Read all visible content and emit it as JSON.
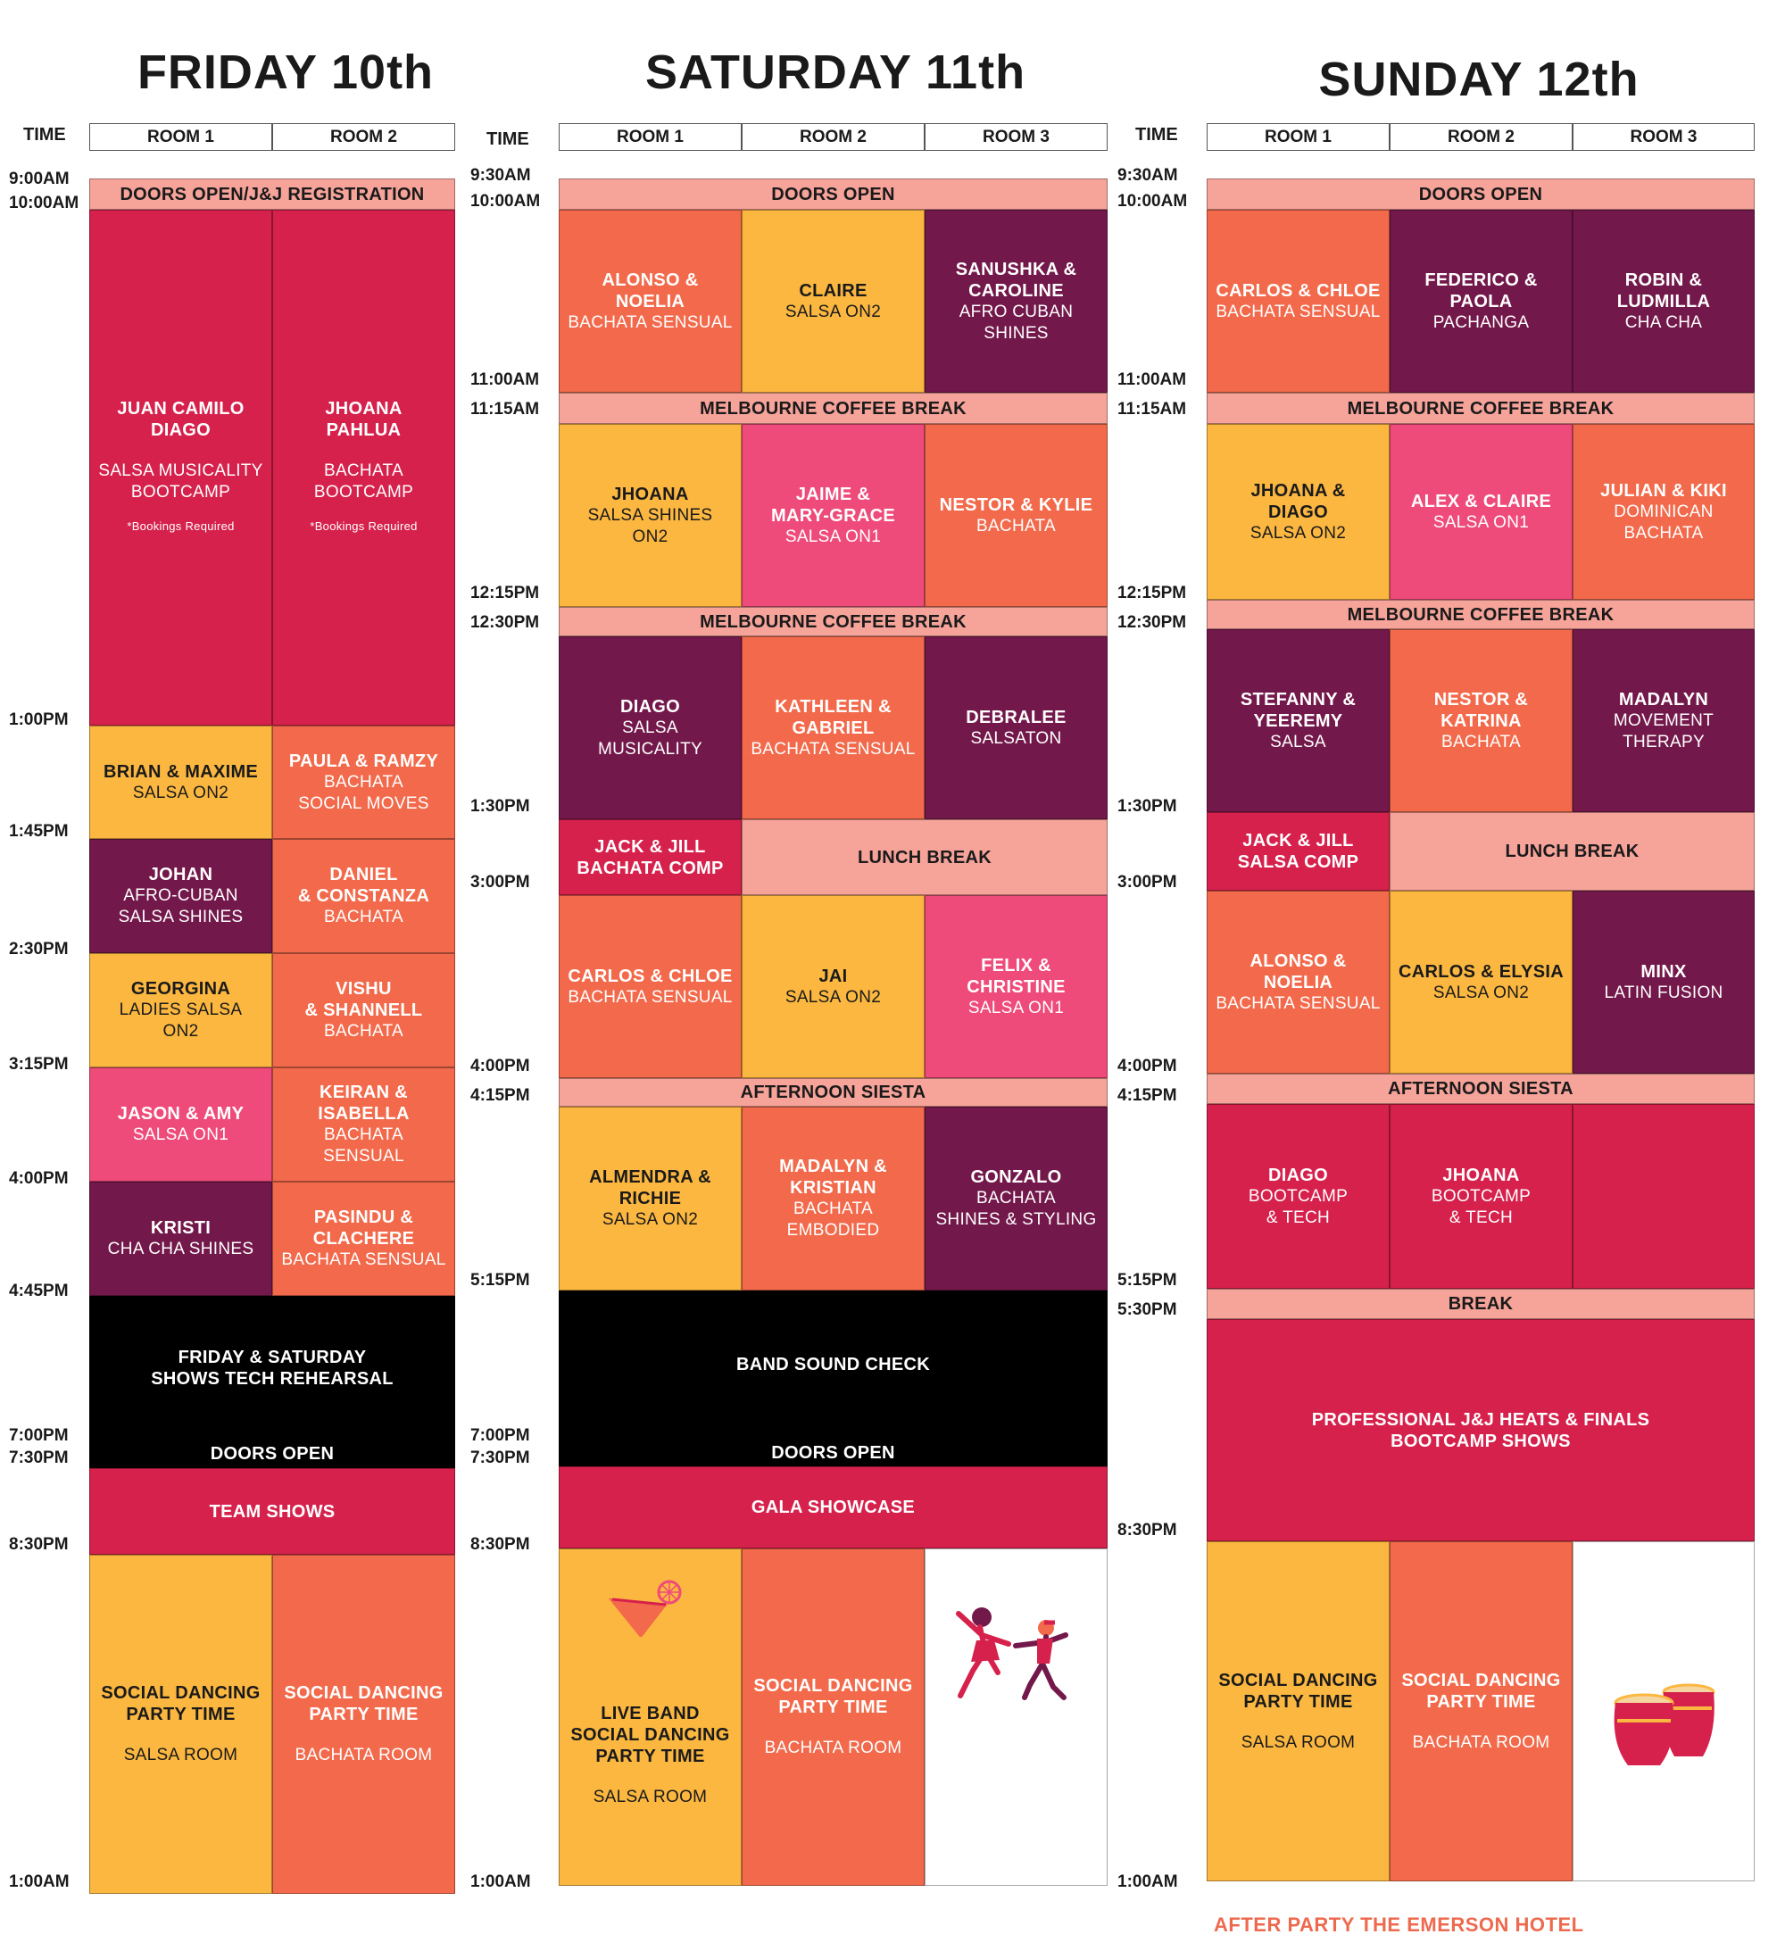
{
  "colors": {
    "crimson": "#d6214c",
    "orange": "#f26a4b",
    "yellow": "#fbb740",
    "pink": "#ef4b7a",
    "plum": "#73184a",
    "salmon": "#f6a39a",
    "black": "#000000"
  },
  "days": [
    {
      "title": "FRIDAY 10th",
      "time_label": "TIME",
      "rooms": [
        "ROOM 1",
        "ROOM 2"
      ],
      "times": [
        "9:00AM",
        "10:00AM",
        "1:00PM",
        "1:45PM",
        "2:30PM",
        "3:15PM",
        "4:00PM",
        "4:45PM",
        "7:00PM",
        "7:30PM",
        "8:30PM",
        "1:00AM"
      ],
      "blocks": [
        {
          "name": "DOORS OPEN/J&J REGISTRATION"
        },
        {
          "name": "JUAN CAMILO\nDIAGO",
          "sub": "SALSA MUSICALITY\nBOOTCAMP",
          "note": "*Bookings Required"
        },
        {
          "name": "JHOANA\nPAHLUA",
          "sub": "BACHATA\nBOOTCAMP",
          "note": "*Bookings Required"
        },
        {
          "name": "BRIAN & MAXIME",
          "sub": "SALSA ON2"
        },
        {
          "name": "PAULA & RAMZY",
          "sub": "BACHATA\nSOCIAL MOVES"
        },
        {
          "name": "JOHAN",
          "sub": "AFRO-CUBAN\nSALSA SHINES"
        },
        {
          "name": "DANIEL\n& CONSTANZA",
          "sub": "BACHATA"
        },
        {
          "name": "GEORGINA",
          "sub": "LADIES SALSA\nON2"
        },
        {
          "name": "VISHU\n& SHANNELL",
          "sub": "BACHATA"
        },
        {
          "name": "JASON & AMY",
          "sub": "SALSA ON1"
        },
        {
          "name": "KEIRAN &\nISABELLA",
          "sub": "BACHATA\nSENSUAL"
        },
        {
          "name": "KRISTI",
          "sub": "CHA CHA SHINES"
        },
        {
          "name": "PASINDU &\nCLACHERE",
          "sub": "BACHATA SENSUAL"
        },
        {
          "name": "FRIDAY & SATURDAY\nSHOWS TECH REHEARSAL"
        },
        {
          "name": "DOORS OPEN"
        },
        {
          "name": "TEAM SHOWS"
        },
        {
          "name": "SOCIAL DANCING\nPARTY TIME",
          "sub": "SALSA ROOM"
        },
        {
          "name": "SOCIAL DANCING\nPARTY TIME",
          "sub": "BACHATA ROOM"
        }
      ]
    },
    {
      "title": "SATURDAY 11th",
      "time_label": "TIME",
      "rooms": [
        "ROOM 1",
        "ROOM 2",
        "ROOM 3"
      ],
      "times": [
        "9:30AM",
        "10:00AM",
        "11:00AM",
        "11:15AM",
        "12:15PM",
        "12:30PM",
        "1:30PM",
        "3:00PM",
        "4:00PM",
        "4:15PM",
        "5:15PM",
        "7:00PM",
        "7:30PM",
        "8:30PM",
        "1:00AM"
      ],
      "blocks": [
        {
          "name": "DOORS OPEN"
        },
        {
          "name": "ALONSO &\nNOELIA",
          "sub": "BACHATA SENSUAL"
        },
        {
          "name": "CLAIRE",
          "sub": "SALSA ON2"
        },
        {
          "name": "SANUSHKA &\nCAROLINE",
          "sub": "AFRO CUBAN\nSHINES"
        },
        {
          "name": "MELBOURNE COFFEE BREAK"
        },
        {
          "name": "JHOANA",
          "sub": "SALSA SHINES\nON2"
        },
        {
          "name": "JAIME &\nMARY-GRACE",
          "sub": "SALSA ON1"
        },
        {
          "name": "NESTOR & KYLIE",
          "sub": "BACHATA"
        },
        {
          "name": "MELBOURNE COFFEE BREAK"
        },
        {
          "name": "DIAGO",
          "sub": "SALSA\nMUSICALITY"
        },
        {
          "name": "KATHLEEN &\nGABRIEL",
          "sub": "BACHATA SENSUAL"
        },
        {
          "name": "DEBRALEE",
          "sub": "SALSATON"
        },
        {
          "name": "JACK & JILL\nBACHATA COMP"
        },
        {
          "name": "LUNCH BREAK"
        },
        {
          "name": "CARLOS & CHLOE",
          "sub": "BACHATA SENSUAL"
        },
        {
          "name": "JAI",
          "sub": "SALSA ON2"
        },
        {
          "name": "FELIX &\nCHRISTINE",
          "sub": "SALSA ON1"
        },
        {
          "name": "AFTERNOON SIESTA"
        },
        {
          "name": "ALMENDRA &\nRICHIE",
          "sub": "SALSA ON2"
        },
        {
          "name": "MADALYN &\nKRISTIAN",
          "sub": "BACHATA\nEMBODIED"
        },
        {
          "name": "GONZALO",
          "sub": "BACHATA\nSHINES & STYLING"
        },
        {
          "name": "BAND SOUND CHECK"
        },
        {
          "name": "DOORS OPEN"
        },
        {
          "name": "GALA SHOWCASE"
        },
        {
          "name": "LIVE BAND\nSOCIAL DANCING\nPARTY TIME",
          "sub": "SALSA ROOM"
        },
        {
          "name": "SOCIAL DANCING\nPARTY TIME",
          "sub": "BACHATA ROOM"
        }
      ]
    },
    {
      "title": "SUNDAY 12th",
      "time_label": "TIME",
      "rooms": [
        "ROOM 1",
        "ROOM 2",
        "ROOM 3"
      ],
      "times": [
        "9:30AM",
        "10:00AM",
        "11:00AM",
        "11:15AM",
        "12:15PM",
        "12:30PM",
        "1:30PM",
        "3:00PM",
        "4:00PM",
        "4:15PM",
        "5:15PM",
        "5:30PM",
        "8:30PM",
        "1:00AM"
      ],
      "blocks": [
        {
          "name": "DOORS OPEN"
        },
        {
          "name": "CARLOS & CHLOE",
          "sub": "BACHATA SENSUAL"
        },
        {
          "name": "FEDERICO &\nPAOLA",
          "sub": "PACHANGA"
        },
        {
          "name": "ROBIN &\nLUDMILLA",
          "sub": "CHA CHA"
        },
        {
          "name": "MELBOURNE COFFEE BREAK"
        },
        {
          "name": "JHOANA &\nDIAGO",
          "sub": "SALSA ON2"
        },
        {
          "name": "ALEX & CLAIRE",
          "sub": "SALSA ON1"
        },
        {
          "name": "JULIAN & KIKI",
          "sub": "DOMINICAN\nBACHATA"
        },
        {
          "name": "MELBOURNE COFFEE BREAK"
        },
        {
          "name": "STEFANNY &\nYEEREMY",
          "sub": "SALSA"
        },
        {
          "name": "NESTOR &\nKATRINA",
          "sub": "BACHATA"
        },
        {
          "name": "MADALYN",
          "sub": "MOVEMENT\nTHERAPY"
        },
        {
          "name": "JACK & JILL\nSALSA COMP"
        },
        {
          "name": "LUNCH BREAK"
        },
        {
          "name": "ALONSO &\nNOELIA",
          "sub": "BACHATA SENSUAL"
        },
        {
          "name": "CARLOS & ELYSIA",
          "sub": "SALSA ON2"
        },
        {
          "name": "MINX",
          "sub": "LATIN FUSION"
        },
        {
          "name": "AFTERNOON SIESTA"
        },
        {
          "name": "DIAGO",
          "sub": "BOOTCAMP\n& TECH"
        },
        {
          "name": "JHOANA",
          "sub": "BOOTCAMP\n& TECH"
        },
        {
          "name": "BREAK"
        },
        {
          "name": "PROFESSIONAL J&J HEATS & FINALS\nBOOTCAMP SHOWS"
        },
        {
          "name": "SOCIAL DANCING\nPARTY TIME",
          "sub": "SALSA ROOM"
        },
        {
          "name": "SOCIAL DANCING\nPARTY TIME",
          "sub": "BACHATA ROOM"
        }
      ]
    }
  ],
  "icons": [
    "cocktail-icon",
    "dancers-icon",
    "bongo-drums-icon"
  ],
  "footer": "AFTER PARTY THE EMERSON HOTEL"
}
